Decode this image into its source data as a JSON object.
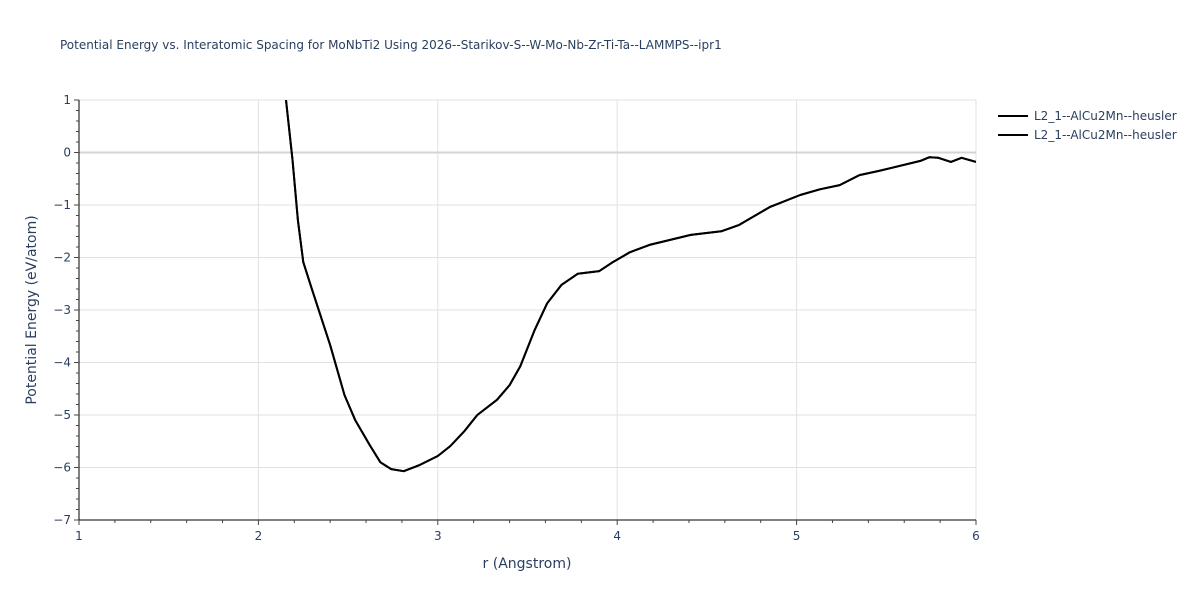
{
  "chart_data": {
    "type": "line",
    "title": "Potential Energy vs. Interatomic Spacing for MoNbTi2 Using 2026--Starikov-S--W-Mo-Nb-Zr-Ti-Ta--LAMMPS--ipr1",
    "xlabel": "r (Angstrom)",
    "ylabel": "Potential Energy (eV/atom)",
    "xlim": [
      1,
      6
    ],
    "ylim": [
      -7,
      1
    ],
    "xticks": [
      "1",
      "2",
      "3",
      "4",
      "5",
      "6"
    ],
    "yticks": [
      "1",
      "0",
      "−1",
      "−2",
      "−3",
      "−4",
      "−5",
      "−6",
      "−7"
    ],
    "grid": true,
    "legend_position": "top-right outside",
    "series": [
      {
        "name": "L2_1--AlCu2Mn--heusler",
        "color": "#000000",
        "x": [
          2.154,
          2.19,
          2.22,
          2.25,
          2.3,
          2.4,
          2.48,
          2.54,
          2.62,
          2.68,
          2.74,
          2.81,
          2.9,
          3.0,
          3.07,
          3.15,
          3.22,
          3.33,
          3.4,
          3.46,
          3.54,
          3.61,
          3.69,
          3.78,
          3.9,
          3.97,
          4.07,
          4.18,
          4.41,
          4.58,
          4.68,
          4.85,
          5.02,
          5.13,
          5.24,
          5.35,
          5.46,
          5.69,
          5.74,
          5.79,
          5.86,
          5.92,
          6.0
        ],
        "y": [
          1.0,
          -0.14,
          -1.29,
          -2.09,
          -2.62,
          -3.67,
          -4.62,
          -5.1,
          -5.57,
          -5.9,
          -6.03,
          -6.07,
          -5.95,
          -5.78,
          -5.59,
          -5.3,
          -5.0,
          -4.71,
          -4.43,
          -4.07,
          -3.38,
          -2.87,
          -2.52,
          -2.31,
          -2.26,
          -2.1,
          -1.9,
          -1.76,
          -1.57,
          -1.5,
          -1.38,
          -1.04,
          -0.81,
          -0.7,
          -0.62,
          -0.43,
          -0.35,
          -0.16,
          -0.09,
          -0.1,
          -0.18,
          -0.1,
          -0.18
        ]
      },
      {
        "name": "L2_1--AlCu2Mn--heusler",
        "color": "#000000",
        "x": [
          2.154,
          2.19,
          2.22,
          2.25,
          2.3,
          2.4,
          2.48,
          2.54,
          2.62,
          2.68,
          2.74,
          2.81,
          2.9,
          3.0,
          3.07,
          3.15,
          3.22,
          3.33,
          3.4,
          3.46,
          3.54,
          3.61,
          3.69,
          3.78,
          3.9,
          3.97,
          4.07,
          4.18,
          4.41,
          4.58,
          4.68,
          4.85,
          5.02,
          5.13,
          5.24,
          5.35,
          5.46,
          5.69,
          5.74,
          5.79,
          5.86,
          5.92,
          6.0
        ],
        "y": [
          1.0,
          -0.14,
          -1.29,
          -2.09,
          -2.62,
          -3.67,
          -4.62,
          -5.1,
          -5.57,
          -5.9,
          -6.03,
          -6.07,
          -5.95,
          -5.78,
          -5.59,
          -5.3,
          -5.0,
          -4.71,
          -4.43,
          -4.07,
          -3.38,
          -2.87,
          -2.52,
          -2.31,
          -2.26,
          -2.1,
          -1.9,
          -1.76,
          -1.57,
          -1.5,
          -1.38,
          -1.04,
          -0.81,
          -0.7,
          -0.62,
          -0.43,
          -0.35,
          -0.16,
          -0.09,
          -0.1,
          -0.18,
          -0.1,
          -0.18
        ]
      }
    ]
  },
  "legend": {
    "items": [
      {
        "label": "L2_1--AlCu2Mn--heusler"
      },
      {
        "label": "L2_1--AlCu2Mn--heusler"
      }
    ]
  }
}
